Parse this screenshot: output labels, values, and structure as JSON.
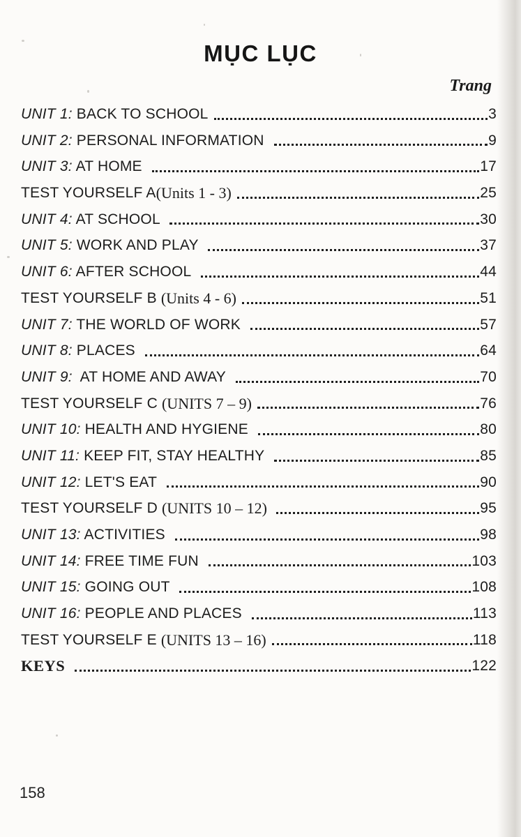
{
  "page": {
    "title": "MỤC LỤC",
    "column_header": "Trang",
    "folio": "158"
  },
  "toc": {
    "entries": [
      {
        "parts": [
          {
            "t": "UNIT 1:",
            "s": "italic"
          },
          {
            "t": " BACK TO SCHOOL",
            "s": "sans"
          }
        ],
        "page": "3"
      },
      {
        "parts": [
          {
            "t": "UNIT 2:",
            "s": "italic"
          },
          {
            "t": " PERSONAL INFORMATION ",
            "s": "sans"
          }
        ],
        "page": "9"
      },
      {
        "parts": [
          {
            "t": "UNIT 3:",
            "s": "italic"
          },
          {
            "t": " AT HOME ",
            "s": "sans"
          }
        ],
        "page": "17"
      },
      {
        "parts": [
          {
            "t": "TEST YOURSELF A",
            "s": "sans"
          },
          {
            "t": "(Units 1 - 3)",
            "s": "serif"
          }
        ],
        "page": "25"
      },
      {
        "parts": [
          {
            "t": "UNIT 4:",
            "s": "italic"
          },
          {
            "t": " AT SCHOOL ",
            "s": "sans"
          }
        ],
        "page": "30"
      },
      {
        "parts": [
          {
            "t": "UNIT 5:",
            "s": "italic"
          },
          {
            "t": " WORK AND PLAY ",
            "s": "sans"
          }
        ],
        "page": "37"
      },
      {
        "parts": [
          {
            "t": "UNIT 6:",
            "s": "italic"
          },
          {
            "t": " AFTER SCHOOL ",
            "s": "sans"
          }
        ],
        "page": "44"
      },
      {
        "parts": [
          {
            "t": "TEST YOURSELF B ",
            "s": "sans"
          },
          {
            "t": "(Units 4 - 6)",
            "s": "serif"
          }
        ],
        "page": "51"
      },
      {
        "parts": [
          {
            "t": "UNIT 7:",
            "s": "italic"
          },
          {
            "t": " THE WORLD OF WORK ",
            "s": "sans"
          }
        ],
        "page": "57"
      },
      {
        "parts": [
          {
            "t": "UNIT 8:",
            "s": "italic"
          },
          {
            "t": " PLACES ",
            "s": "sans"
          }
        ],
        "page": "64"
      },
      {
        "parts": [
          {
            "t": "UNIT 9:",
            "s": "italic"
          },
          {
            "t": "  AT HOME AND AWAY ",
            "s": "sans"
          }
        ],
        "page": "70"
      },
      {
        "parts": [
          {
            "t": "TEST YOURSELF C ",
            "s": "sans"
          },
          {
            "t": "(UNITS 7 – 9)",
            "s": "serif"
          }
        ],
        "page": "76"
      },
      {
        "parts": [
          {
            "t": "UNIT 10:",
            "s": "italic"
          },
          {
            "t": " HEALTH AND HYGIENE ",
            "s": "sans"
          }
        ],
        "page": "80"
      },
      {
        "parts": [
          {
            "t": "UNIT 11:",
            "s": "italic"
          },
          {
            "t": " KEEP FIT, STAY HEALTHY ",
            "s": "sans"
          }
        ],
        "page": "85"
      },
      {
        "parts": [
          {
            "t": "UNIT 12:",
            "s": "italic"
          },
          {
            "t": " LET'S EAT ",
            "s": "sans"
          }
        ],
        "page": "90"
      },
      {
        "parts": [
          {
            "t": "TEST YOURSELF D ",
            "s": "sans"
          },
          {
            "t": "(UNITS 10 – 12) ",
            "s": "serif"
          }
        ],
        "page": "95"
      },
      {
        "parts": [
          {
            "t": "UNIT 13:",
            "s": "italic"
          },
          {
            "t": " ACTIVITIES ",
            "s": "sans"
          }
        ],
        "page": "98"
      },
      {
        "parts": [
          {
            "t": "UNIT 14:",
            "s": "italic"
          },
          {
            "t": " FREE TIME FUN ",
            "s": "sans"
          }
        ],
        "page": "103"
      },
      {
        "parts": [
          {
            "t": "UNIT 15:",
            "s": "italic"
          },
          {
            "t": " GOING OUT ",
            "s": "sans"
          }
        ],
        "page": "108"
      },
      {
        "parts": [
          {
            "t": "UNIT 16:",
            "s": "italic"
          },
          {
            "t": " PEOPLE AND PLACES ",
            "s": "sans"
          }
        ],
        "page": "113"
      },
      {
        "parts": [
          {
            "t": "TEST YOURSELF E ",
            "s": "sans"
          },
          {
            "t": "(UNITS 13 – 16)",
            "s": "serif"
          }
        ],
        "page": "118"
      },
      {
        "parts": [
          {
            "t": "KEYS",
            "s": "serifbold"
          },
          {
            "t": " ",
            "s": "sans"
          }
        ],
        "page": "122"
      }
    ]
  }
}
